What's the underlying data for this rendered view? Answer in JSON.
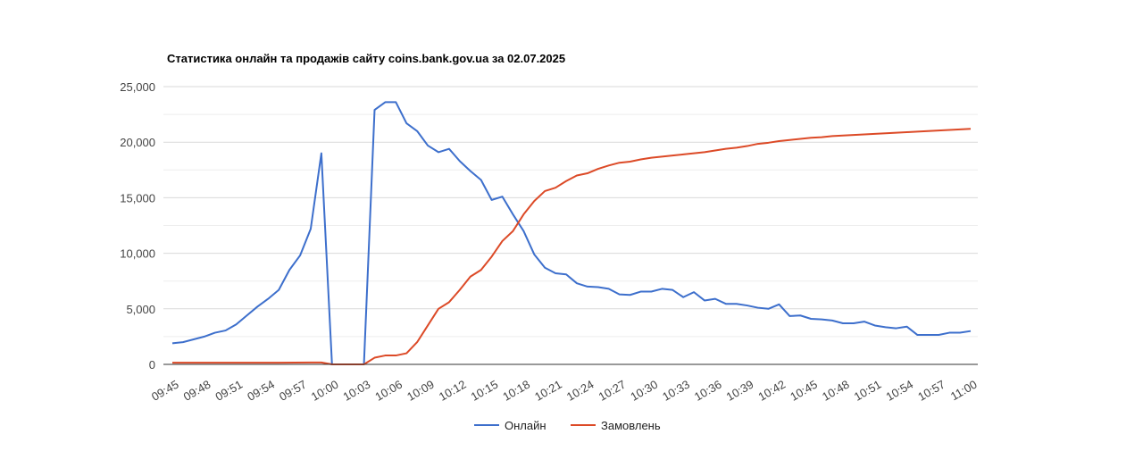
{
  "chart_data": {
    "type": "line",
    "title": "Статистика онлайн та продажів сайту coins.bank.gov.ua за 02.07.2025",
    "xlabel": "",
    "ylabel": "",
    "ylim": [
      0,
      25000
    ],
    "y_ticks": [
      0,
      5000,
      10000,
      15000,
      20000,
      25000
    ],
    "y_tick_labels": [
      "0",
      "5,000",
      "10,000",
      "15,000",
      "20,000",
      "25,000"
    ],
    "x_tick_labels": [
      "09:45",
      "09:48",
      "09:51",
      "09:54",
      "09:57",
      "10:00",
      "10:03",
      "10:06",
      "10:09",
      "10:12",
      "10:15",
      "10:18",
      "10:21",
      "10:24",
      "10:27",
      "10:30",
      "10:33",
      "10:36",
      "10:39",
      "10:42",
      "10:45",
      "10:48",
      "10:51",
      "10:54",
      "10:57",
      "11:00"
    ],
    "x_range": [
      "09:45",
      "11:00"
    ],
    "grid": true,
    "legend_position": "bottom",
    "series": [
      {
        "name": "Онлайн",
        "color": "#3d6fcc",
        "points": [
          [
            "09:45",
            1900
          ],
          [
            "09:46",
            2000
          ],
          [
            "09:47",
            2250
          ],
          [
            "09:48",
            2500
          ],
          [
            "09:49",
            2850
          ],
          [
            "09:50",
            3050
          ],
          [
            "09:51",
            3600
          ],
          [
            "09:52",
            4400
          ],
          [
            "09:53",
            5200
          ],
          [
            "09:54",
            5900
          ],
          [
            "09:55",
            6700
          ],
          [
            "09:56",
            8500
          ],
          [
            "09:57",
            9800
          ],
          [
            "09:58",
            12200
          ],
          [
            "09:59",
            19000
          ],
          [
            "10:00",
            0
          ],
          [
            "10:01",
            0
          ],
          [
            "10:02",
            0
          ],
          [
            "10:03",
            0
          ],
          [
            "10:04",
            22900
          ],
          [
            "10:05",
            23600
          ],
          [
            "10:06",
            23600
          ],
          [
            "10:07",
            21700
          ],
          [
            "10:08",
            21000
          ],
          [
            "10:09",
            19700
          ],
          [
            "10:10",
            19100
          ],
          [
            "10:11",
            19400
          ],
          [
            "10:12",
            18300
          ],
          [
            "10:13",
            17400
          ],
          [
            "10:14",
            16600
          ],
          [
            "10:15",
            14800
          ],
          [
            "10:16",
            15100
          ],
          [
            "10:17",
            13500
          ],
          [
            "10:18",
            12000
          ],
          [
            "10:19",
            9900
          ],
          [
            "10:20",
            8700
          ],
          [
            "10:21",
            8200
          ],
          [
            "10:22",
            8100
          ],
          [
            "10:23",
            7300
          ],
          [
            "10:24",
            7000
          ],
          [
            "10:25",
            6950
          ],
          [
            "10:26",
            6800
          ],
          [
            "10:27",
            6300
          ],
          [
            "10:28",
            6250
          ],
          [
            "10:29",
            6550
          ],
          [
            "10:30",
            6550
          ],
          [
            "10:31",
            6800
          ],
          [
            "10:32",
            6700
          ],
          [
            "10:33",
            6050
          ],
          [
            "10:34",
            6500
          ],
          [
            "10:35",
            5750
          ],
          [
            "10:36",
            5900
          ],
          [
            "10:37",
            5450
          ],
          [
            "10:38",
            5450
          ],
          [
            "10:39",
            5300
          ],
          [
            "10:40",
            5100
          ],
          [
            "10:41",
            5000
          ],
          [
            "10:42",
            5400
          ],
          [
            "10:43",
            4350
          ],
          [
            "10:44",
            4400
          ],
          [
            "10:45",
            4100
          ],
          [
            "10:46",
            4050
          ],
          [
            "10:47",
            3950
          ],
          [
            "10:48",
            3700
          ],
          [
            "10:49",
            3700
          ],
          [
            "10:50",
            3850
          ],
          [
            "10:51",
            3500
          ],
          [
            "10:52",
            3350
          ],
          [
            "10:53",
            3250
          ],
          [
            "10:54",
            3400
          ],
          [
            "10:55",
            2650
          ],
          [
            "10:56",
            2650
          ],
          [
            "10:57",
            2650
          ],
          [
            "10:58",
            2850
          ],
          [
            "10:59",
            2850
          ],
          [
            "11:00",
            3000
          ]
        ]
      },
      {
        "name": "Замовлень",
        "color": "#dc4a27",
        "points": [
          [
            "09:45",
            150
          ],
          [
            "09:50",
            150
          ],
          [
            "09:55",
            150
          ],
          [
            "09:58",
            170
          ],
          [
            "09:59",
            170
          ],
          [
            "10:00",
            0
          ],
          [
            "10:03",
            0
          ],
          [
            "10:04",
            600
          ],
          [
            "10:05",
            800
          ],
          [
            "10:06",
            800
          ],
          [
            "10:07",
            1000
          ],
          [
            "10:08",
            2000
          ],
          [
            "10:09",
            3500
          ],
          [
            "10:10",
            5000
          ],
          [
            "10:11",
            5600
          ],
          [
            "10:12",
            6700
          ],
          [
            "10:13",
            7900
          ],
          [
            "10:14",
            8500
          ],
          [
            "10:15",
            9700
          ],
          [
            "10:16",
            11100
          ],
          [
            "10:17",
            12000
          ],
          [
            "10:18",
            13500
          ],
          [
            "10:19",
            14700
          ],
          [
            "10:20",
            15600
          ],
          [
            "10:21",
            15900
          ],
          [
            "10:22",
            16500
          ],
          [
            "10:23",
            17000
          ],
          [
            "10:24",
            17200
          ],
          [
            "10:25",
            17600
          ],
          [
            "10:26",
            17900
          ],
          [
            "10:27",
            18150
          ],
          [
            "10:28",
            18250
          ],
          [
            "10:29",
            18450
          ],
          [
            "10:30",
            18600
          ],
          [
            "10:31",
            18700
          ],
          [
            "10:32",
            18800
          ],
          [
            "10:33",
            18900
          ],
          [
            "10:34",
            19000
          ],
          [
            "10:35",
            19100
          ],
          [
            "10:36",
            19250
          ],
          [
            "10:37",
            19400
          ],
          [
            "10:38",
            19500
          ],
          [
            "10:39",
            19650
          ],
          [
            "10:40",
            19850
          ],
          [
            "10:41",
            19950
          ],
          [
            "10:42",
            20100
          ],
          [
            "10:43",
            20200
          ],
          [
            "10:44",
            20300
          ],
          [
            "10:45",
            20400
          ],
          [
            "10:46",
            20450
          ],
          [
            "10:47",
            20550
          ],
          [
            "10:48",
            20600
          ],
          [
            "10:49",
            20650
          ],
          [
            "10:50",
            20700
          ],
          [
            "10:51",
            20750
          ],
          [
            "10:52",
            20800
          ],
          [
            "10:53",
            20850
          ],
          [
            "10:54",
            20900
          ],
          [
            "10:55",
            20950
          ],
          [
            "10:56",
            21000
          ],
          [
            "10:57",
            21050
          ],
          [
            "10:58",
            21100
          ],
          [
            "10:59",
            21150
          ],
          [
            "11:00",
            21200
          ]
        ]
      }
    ]
  }
}
